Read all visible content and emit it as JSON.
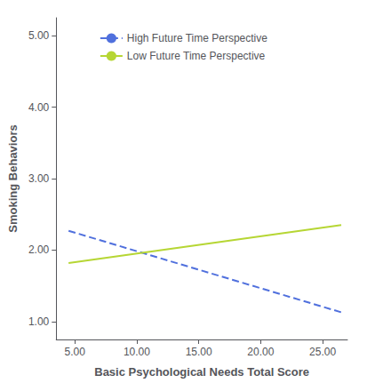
{
  "chart_data": {
    "type": "line",
    "x": [
      4.5,
      26.5
    ],
    "series": [
      {
        "name": "High Future Time Perspective",
        "values": [
          2.27,
          1.13
        ],
        "line_style": "dashed"
      },
      {
        "name": "Low Future Time Perspective",
        "values": [
          1.82,
          2.35
        ],
        "line_style": "solid"
      }
    ],
    "xlabel": "Basic Psychological Needs Total Score",
    "ylabel": "Smoking Behaviors",
    "xlim": [
      3.5,
      27.0
    ],
    "ylim": [
      0.75,
      5.25
    ],
    "xticks": [
      {
        "value": 5.0,
        "label": "5.00"
      },
      {
        "value": 10.0,
        "label": "10.00"
      },
      {
        "value": 15.0,
        "label": "15.00"
      },
      {
        "value": 20.0,
        "label": "20.00"
      },
      {
        "value": 25.0,
        "label": "25.00"
      }
    ],
    "yticks": [
      {
        "value": 1.0,
        "label": "1.00"
      },
      {
        "value": 2.0,
        "label": "2.00"
      },
      {
        "value": 3.0,
        "label": "3.00"
      },
      {
        "value": 4.0,
        "label": "4.00"
      },
      {
        "value": 5.0,
        "label": "5.00"
      }
    ],
    "grid": false,
    "legend": "upper center"
  }
}
